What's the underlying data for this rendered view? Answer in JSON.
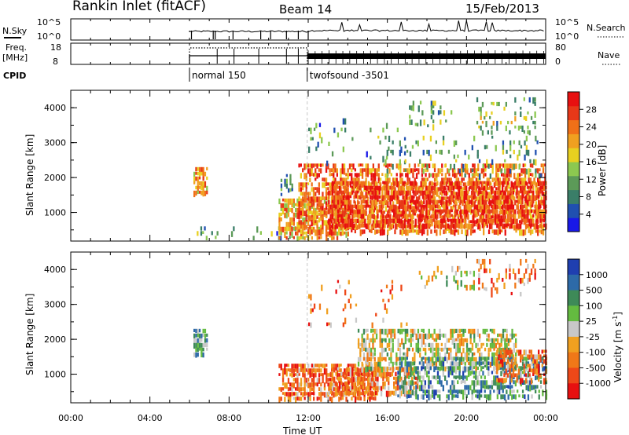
{
  "header": {
    "title": "Rankin Inlet (fitACF)",
    "beam": "Beam 14",
    "date": "15/Feb/2013"
  },
  "labels": {
    "nsky": "N.Sky",
    "nsearch": "N.Search",
    "freq": "Freq.",
    "mhz": "[MHz]",
    "nave": "Nave",
    "cpid": "CPID",
    "sky_low": "10^0",
    "sky_high": "10^5",
    "search_low": "10^0",
    "search_high": "10^5",
    "freq_low": "8",
    "freq_high": "18",
    "nave_low": "0",
    "nave_high": "80"
  },
  "cpid_segments": [
    {
      "start_hour": 6.0,
      "label": "normal 150"
    },
    {
      "start_hour": 11.95,
      "label": "twofsound -3501"
    }
  ],
  "chart_data": [
    {
      "type": "heatmap",
      "name": "power-panel",
      "ylabel": "Slant Range [km]",
      "ylim": [
        180,
        4500
      ],
      "yticks": [
        1000,
        2000,
        3000,
        4000
      ],
      "xlim": [
        0,
        24
      ],
      "colorbar": {
        "label": "Power [dB]",
        "range": [
          0,
          32
        ],
        "ticks": [
          "4",
          "8",
          "12",
          "16",
          "20",
          "24",
          "28"
        ],
        "colors": [
          "#1818e8",
          "#2050b0",
          "#3a7e68",
          "#5c9a58",
          "#8cc850",
          "#e8d020",
          "#f0a020",
          "#f07018",
          "#e83818",
          "#e81010"
        ]
      },
      "regions": [
        {
          "t0": 6.2,
          "t1": 6.9,
          "r0": 1500,
          "r1": 2300,
          "density": 0.8,
          "level": 0.7
        },
        {
          "t0": 6.0,
          "t1": 11.5,
          "r0": 180,
          "r1": 600,
          "density": 0.15,
          "level": 0.3
        },
        {
          "t0": 10.6,
          "t1": 11.3,
          "r0": 1500,
          "r1": 2100,
          "density": 0.3,
          "level": 0.3
        },
        {
          "t0": 10.5,
          "t1": 14.0,
          "r0": 200,
          "r1": 1400,
          "density": 0.7,
          "level": 0.65
        },
        {
          "t0": 11.5,
          "t1": 24.0,
          "r0": 400,
          "r1": 2400,
          "density": 0.65,
          "level": 0.75
        },
        {
          "t0": 13.0,
          "t1": 24.0,
          "r0": 600,
          "r1": 1900,
          "density": 0.75,
          "level": 0.85
        },
        {
          "t0": 12.0,
          "t1": 17.5,
          "r0": 2400,
          "r1": 3700,
          "density": 0.06,
          "level": 0.3
        },
        {
          "t0": 17.0,
          "t1": 19.5,
          "r0": 3400,
          "r1": 4200,
          "density": 0.2,
          "level": 0.4
        },
        {
          "t0": 20.5,
          "t1": 23.5,
          "r0": 3300,
          "r1": 4300,
          "density": 0.22,
          "level": 0.4
        },
        {
          "t0": 15.5,
          "t1": 24.0,
          "r0": 2000,
          "r1": 3200,
          "density": 0.12,
          "level": 0.35
        }
      ]
    },
    {
      "type": "heatmap",
      "name": "velocity-panel",
      "ylabel": "Slant Range [km]",
      "xlabel": "Time UT",
      "ylim": [
        180,
        4500
      ],
      "yticks": [
        1000,
        2000,
        3000,
        4000
      ],
      "xlim": [
        0,
        24
      ],
      "xticks": [
        "00:00",
        "04:00",
        "08:00",
        "12:00",
        "16:00",
        "20:00",
        "00:00"
      ],
      "colorbar": {
        "label": "Velocity [m s^-1]",
        "ticks": [
          "1000",
          "500",
          "100",
          "25",
          "-25",
          "-100",
          "-500",
          "-1000"
        ],
        "colors": [
          "#1f3fb0",
          "#2d6aa8",
          "#3e8a58",
          "#64bb40",
          "#c8c8c8",
          "#f0a020",
          "#f07818",
          "#ee4818",
          "#e81010"
        ]
      },
      "regions": [
        {
          "t0": 6.2,
          "t1": 6.9,
          "r0": 1500,
          "r1": 2300,
          "density": 0.8,
          "level": 0.31
        },
        {
          "t0": 10.5,
          "t1": 15.5,
          "r0": 200,
          "r1": 1300,
          "density": 0.75,
          "level": 0.75
        },
        {
          "t0": 13.0,
          "t1": 17.5,
          "r0": 500,
          "r1": 1200,
          "density": 0.6,
          "level": 0.72
        },
        {
          "t0": 14.5,
          "t1": 22.5,
          "r0": 1100,
          "r1": 2300,
          "density": 0.6,
          "level": 0.5
        },
        {
          "t0": 16.5,
          "t1": 24.0,
          "r0": 400,
          "r1": 1500,
          "density": 0.55,
          "level": 0.3
        },
        {
          "t0": 21.5,
          "t1": 24.0,
          "r0": 800,
          "r1": 1700,
          "density": 0.6,
          "level": 0.75
        },
        {
          "t0": 17.5,
          "t1": 20.5,
          "r0": 3500,
          "r1": 4100,
          "density": 0.2,
          "level": 0.5
        },
        {
          "t0": 20.5,
          "t1": 23.5,
          "r0": 3300,
          "r1": 4300,
          "density": 0.22,
          "level": 0.72
        },
        {
          "t0": 12.0,
          "t1": 17.0,
          "r0": 2400,
          "r1": 3700,
          "density": 0.05,
          "level": 0.72
        }
      ]
    }
  ]
}
